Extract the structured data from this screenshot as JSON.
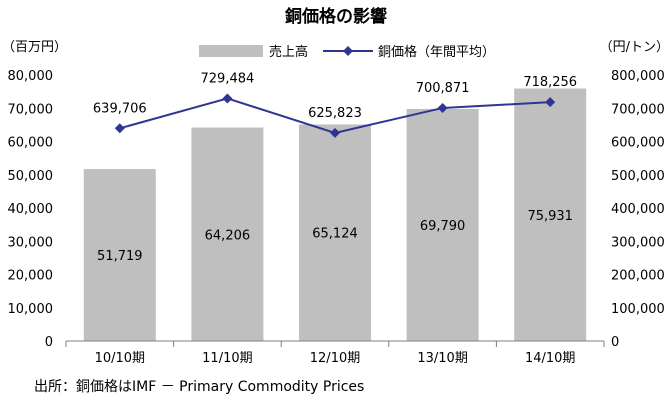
{
  "chart_data": {
    "type": "bar",
    "title": "銅価格の影響",
    "left_unit": "（百万円）",
    "right_unit": "（円/トン）",
    "categories": [
      "10/10期",
      "11/10期",
      "12/10期",
      "13/10期",
      "14/10期"
    ],
    "left_axis": {
      "ylim": [
        0,
        80000
      ],
      "ticks": [
        "0",
        "10,000",
        "20,000",
        "30,000",
        "40,000",
        "50,000",
        "60,000",
        "70,000",
        "80,000"
      ]
    },
    "right_axis": {
      "ylim": [
        0,
        800000
      ],
      "ticks": [
        "0",
        "100,000",
        "200,000",
        "300,000",
        "400,000",
        "500,000",
        "600,000",
        "700,000",
        "800,000"
      ]
    },
    "series": [
      {
        "name": "売上高",
        "kind": "bar",
        "axis": "left",
        "color": "#bfbfbf",
        "values": [
          51719,
          64206,
          65124,
          69790,
          75931
        ],
        "labels": [
          "51,719",
          "64,206",
          "65,124",
          "69,790",
          "75,931"
        ]
      },
      {
        "name": "銅価格（年間平均）",
        "kind": "line",
        "axis": "right",
        "color": "#2e3592",
        "marker": "diamond",
        "values": [
          639706,
          729484,
          625823,
          700871,
          718256
        ],
        "labels": [
          "639,706",
          "729,484",
          "625,823",
          "700,871",
          "718,256"
        ]
      }
    ],
    "grid": false,
    "legend": "top-center"
  },
  "source": "出所：銅価格はIMF － Primary Commodity Prices"
}
